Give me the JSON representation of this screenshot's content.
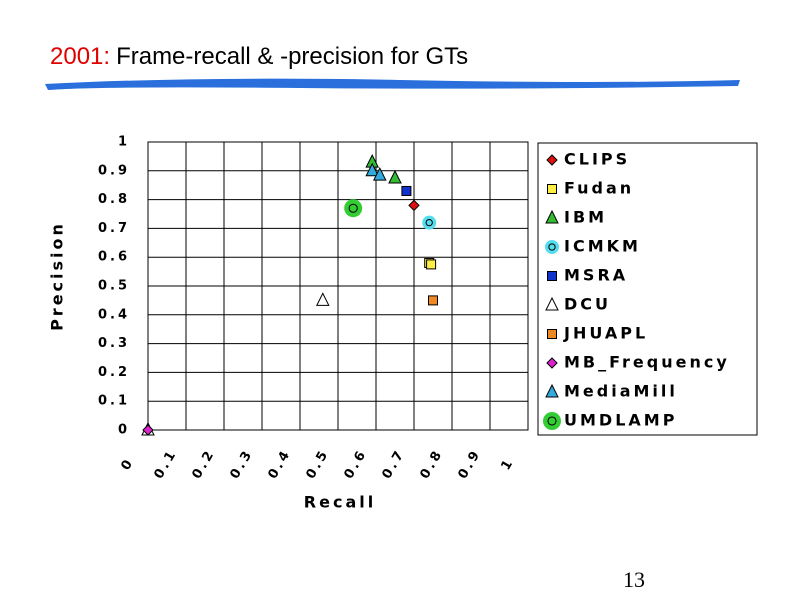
{
  "title_prefix": "2001:",
  "title": "Frame-recall & -precision for GTs",
  "page_number": "13",
  "chart_data": {
    "type": "scatter",
    "x_label": "Recall",
    "y_label": "Precision",
    "xlim": [
      0,
      1
    ],
    "ylim": [
      0,
      1
    ],
    "xticks": [
      0,
      0.1,
      0.2,
      0.3,
      0.4,
      0.5,
      0.6,
      0.7,
      0.8,
      0.9,
      1
    ],
    "yticks": [
      0,
      0.1,
      0.2,
      0.3,
      0.4,
      0.5,
      0.6,
      0.7,
      0.8,
      0.9,
      1
    ],
    "grid": true,
    "legend": "right",
    "series": [
      {
        "name": "CLIPS",
        "color": "#e01010",
        "marker": "diamond",
        "x": [
          0.7
        ],
        "y": [
          0.78
        ]
      },
      {
        "name": "Fudan",
        "color": "#ffee44",
        "marker": "square",
        "x": [
          0.74,
          0.745
        ],
        "y": [
          0.58,
          0.575
        ]
      },
      {
        "name": "IBM",
        "color": "#33bb33",
        "marker": "triangle",
        "x": [
          0.59,
          0.65
        ],
        "y": [
          0.93,
          0.875
        ]
      },
      {
        "name": "ICMKM",
        "color": "#55ddee",
        "marker": "ring",
        "x": [
          0.74
        ],
        "y": [
          0.72
        ]
      },
      {
        "name": "MSRA",
        "color": "#1133cc",
        "marker": "square",
        "x": [
          0.68
        ],
        "y": [
          0.83
        ]
      },
      {
        "name": "DCU",
        "color": "#ffffff",
        "marker": "triangle",
        "x": [
          0.46,
          0
        ],
        "y": [
          0.45,
          0
        ]
      },
      {
        "name": "JHUAPL",
        "color": "#ee8822",
        "marker": "square",
        "x": [
          0.75
        ],
        "y": [
          0.45
        ]
      },
      {
        "name": "MB_Frequency",
        "color": "#dd22cc",
        "marker": "diamond",
        "x": [
          0
        ],
        "y": [
          0
        ]
      },
      {
        "name": "MediaMill",
        "color": "#33aadd",
        "marker": "triangle",
        "x": [
          0.59,
          0.61
        ],
        "y": [
          0.9,
          0.885
        ]
      },
      {
        "name": "UMDLAMP",
        "color": "#33cc33",
        "marker": "bigring",
        "x": [
          0.54
        ],
        "y": [
          0.77
        ]
      }
    ]
  }
}
